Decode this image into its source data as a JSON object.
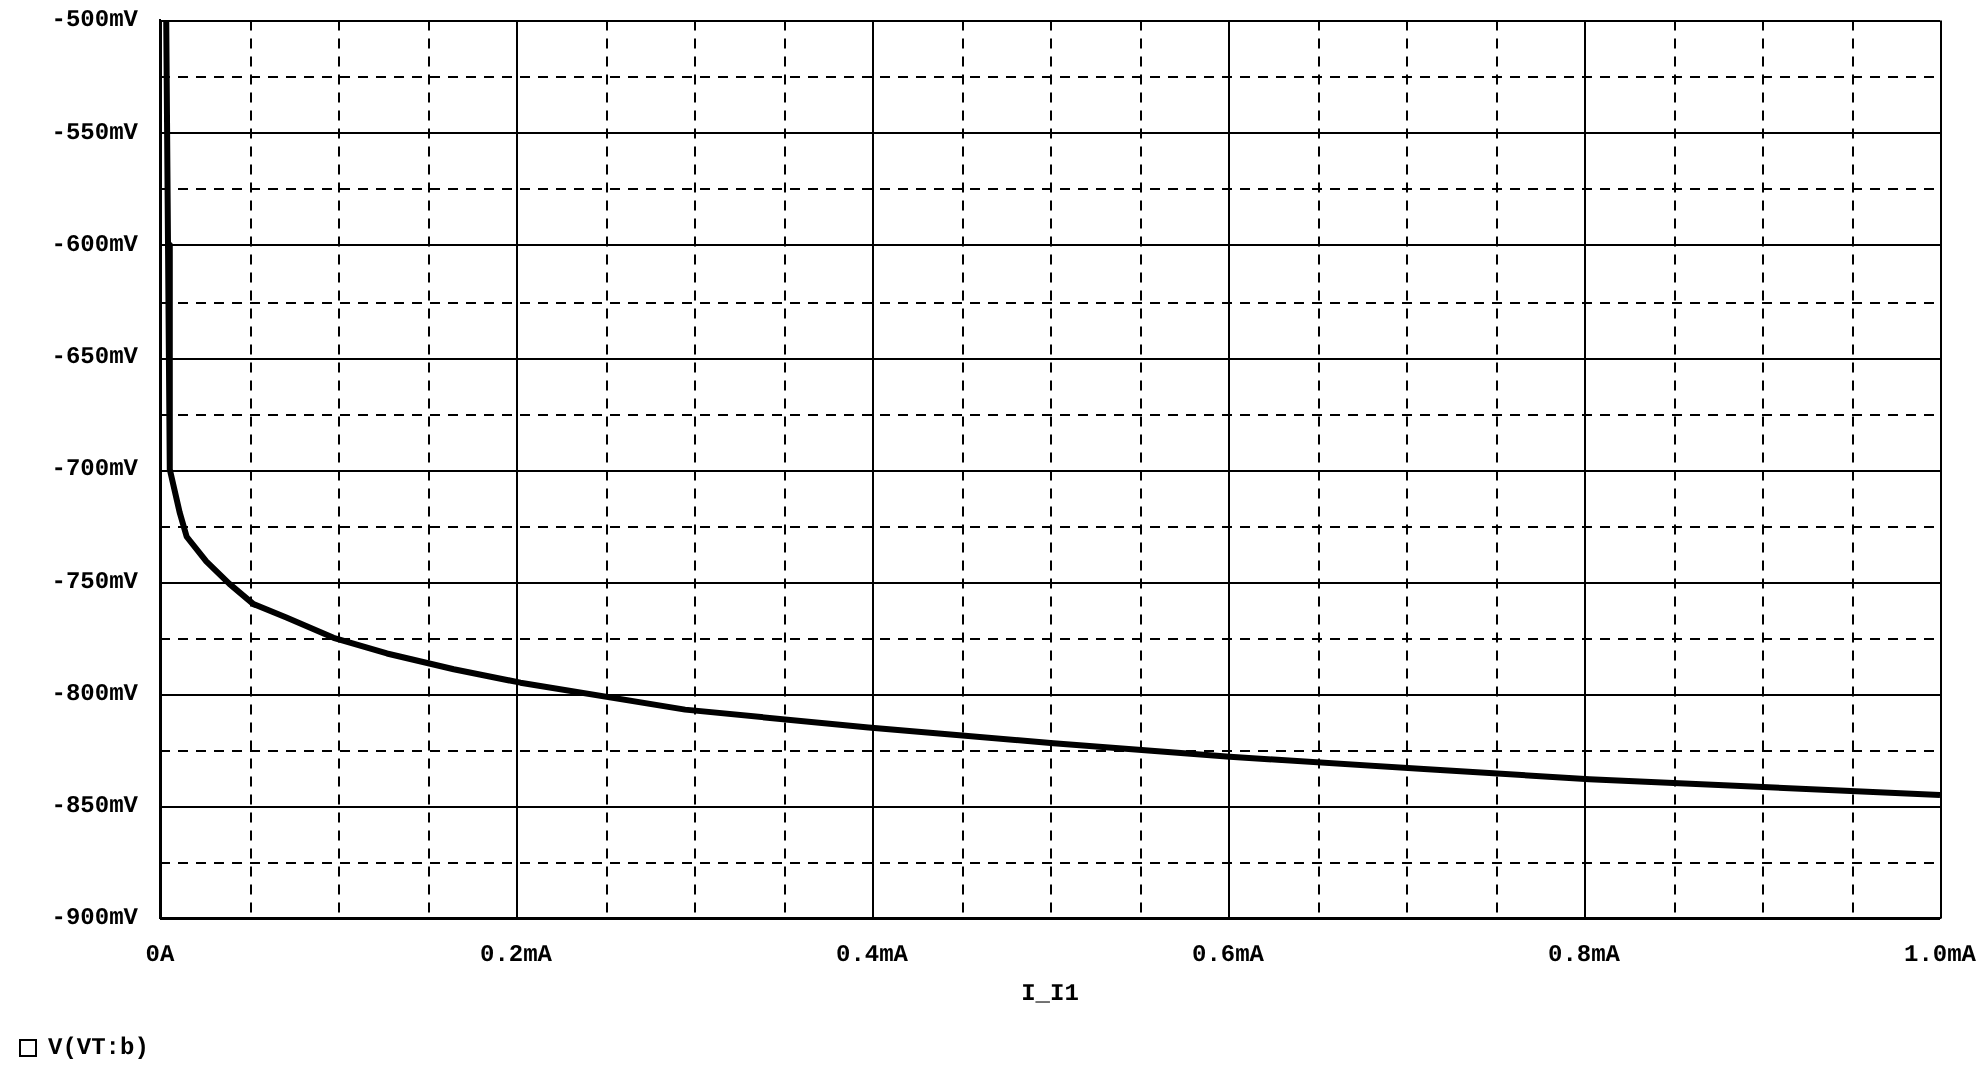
{
  "chart_data": {
    "type": "line",
    "xlabel": "I_I1",
    "x": [
      0.0035,
      0.0045,
      0.0055,
      0.011,
      0.015,
      0.026,
      0.039,
      0.0525,
      0.071,
      0.0975,
      0.1275,
      0.165,
      0.2025,
      0.295,
      0.398,
      0.502,
      0.601,
      0.71,
      0.803,
      1.0
    ],
    "series": [
      {
        "name": "V(VT:b)",
        "color": "#000000",
        "values": [
          -500,
          -600,
          -700,
          -719,
          -730,
          -741,
          -751,
          -760,
          -766,
          -775,
          -782,
          -789,
          -795,
          -807,
          -815,
          -822,
          -828,
          -833.5,
          -838,
          -845
        ]
      }
    ],
    "xlim": [
      0,
      1.0
    ],
    "xticks": [
      {
        "value": 0,
        "label": "0A"
      },
      {
        "value": 0.05,
        "label": null
      },
      {
        "value": 0.1,
        "label": null
      },
      {
        "value": 0.15,
        "label": null
      },
      {
        "value": 0.2,
        "label": "0.2mA"
      },
      {
        "value": 0.25,
        "label": null
      },
      {
        "value": 0.3,
        "label": null
      },
      {
        "value": 0.35,
        "label": null
      },
      {
        "value": 0.4,
        "label": "0.4mA"
      },
      {
        "value": 0.45,
        "label": null
      },
      {
        "value": 0.5,
        "label": null
      },
      {
        "value": 0.55,
        "label": null
      },
      {
        "value": 0.6,
        "label": "0.6mA"
      },
      {
        "value": 0.65,
        "label": null
      },
      {
        "value": 0.7,
        "label": null
      },
      {
        "value": 0.75,
        "label": null
      },
      {
        "value": 0.8,
        "label": "0.8mA"
      },
      {
        "value": 0.85,
        "label": null
      },
      {
        "value": 0.9,
        "label": null
      },
      {
        "value": 0.95,
        "label": null
      },
      {
        "value": 1.0,
        "label": "1.0mA"
      }
    ],
    "ylim": [
      -900,
      -500
    ],
    "yticks": [
      {
        "value": -900,
        "label": "-900mV"
      },
      {
        "value": -875,
        "label": null
      },
      {
        "value": -850,
        "label": "-850mV"
      },
      {
        "value": -825,
        "label": null
      },
      {
        "value": -800,
        "label": "-800mV"
      },
      {
        "value": -775,
        "label": null
      },
      {
        "value": -750,
        "label": "-750mV"
      },
      {
        "value": -725,
        "label": null
      },
      {
        "value": -700,
        "label": "-700mV"
      },
      {
        "value": -675,
        "label": null
      },
      {
        "value": -650,
        "label": "-650mV"
      },
      {
        "value": -625,
        "label": null
      },
      {
        "value": -600,
        "label": "-600mV"
      },
      {
        "value": -575,
        "label": null
      },
      {
        "value": -550,
        "label": "-550mV"
      },
      {
        "value": -525,
        "label": null
      },
      {
        "value": -500,
        "label": "-500mV"
      }
    ],
    "grid": true,
    "legend": "bottom left"
  }
}
